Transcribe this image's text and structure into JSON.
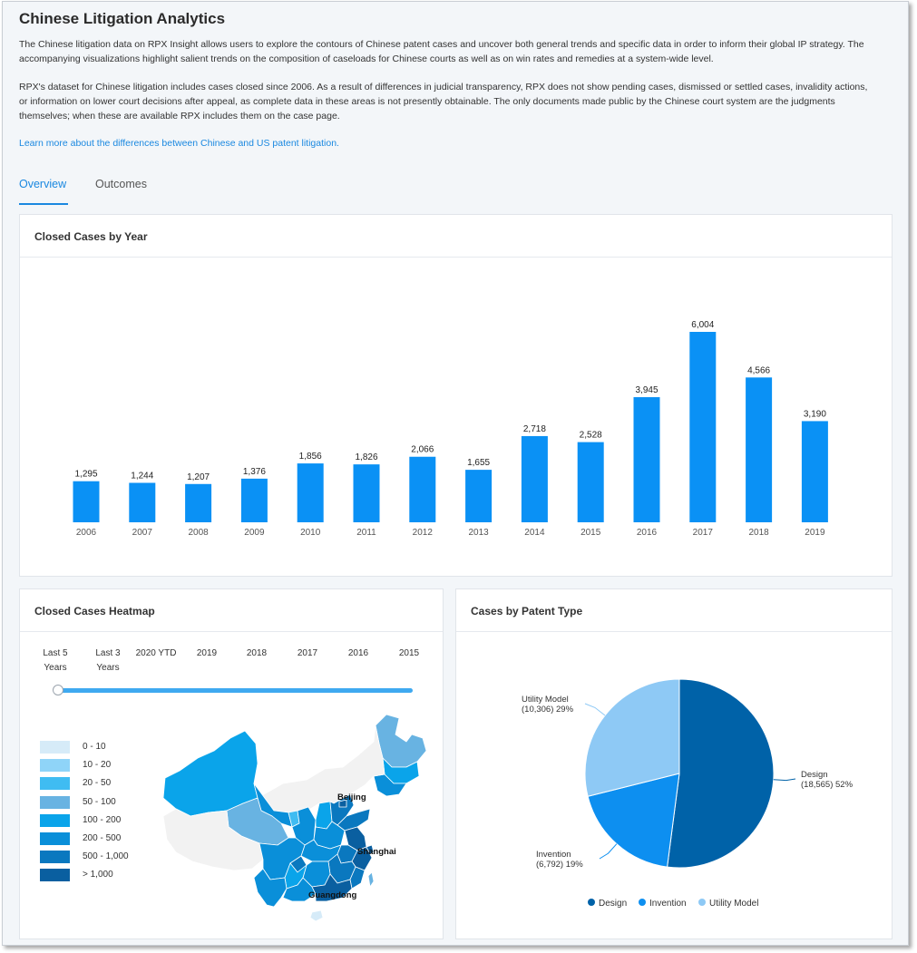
{
  "page": {
    "title": "Chinese Litigation Analytics",
    "para1": "The Chinese litigation data on RPX Insight allows users to explore the contours of Chinese patent cases and uncover both general trends and specific data in order to inform their global IP strategy. The accompanying visualizations highlight salient trends on the composition of caseloads for Chinese courts as well as on win rates and remedies at a system-wide level.",
    "para2": "RPX's dataset for Chinese litigation includes cases closed since 2006. As a result of differences in judicial transparency, RPX does not show pending cases, dismissed or settled cases, invalidity actions, or information on lower court decisions after appeal, as complete data in these areas is not presently obtainable.  The only documents made public by the Chinese court system are the judgments themselves; when these are available RPX includes them on the case page.",
    "link": "Learn more about the differences between Chinese and US patent litigation.",
    "tabs": [
      "Overview",
      "Outcomes"
    ],
    "active_tab": "Overview"
  },
  "colors": {
    "accent": "#1a88e0",
    "bar": "#0a91f5",
    "design": "#0062a8",
    "invention": "#0d8ff0",
    "utility": "#8ec9f5"
  },
  "bar_card": {
    "title": "Closed Cases by Year"
  },
  "heatmap": {
    "title": "Closed Cases Heatmap",
    "slider_labels": [
      "Last 5 Years",
      "Last 3 Years",
      "2020 YTD",
      "2019",
      "2018",
      "2017",
      "2016",
      "2015"
    ],
    "selected": "Last 5 Years",
    "legend": [
      {
        "label": "0 - 10",
        "color": "#d6ebf8"
      },
      {
        "label": "10 - 20",
        "color": "#8fd4f8"
      },
      {
        "label": "20 - 50",
        "color": "#3fbcf2"
      },
      {
        "label": "50 - 100",
        "color": "#68b3e2"
      },
      {
        "label": "100 - 200",
        "color": "#0aa4ea"
      },
      {
        "label": "200 - 500",
        "color": "#0a8fd9"
      },
      {
        "label": "500 - 1,000",
        "color": "#0a78bf"
      },
      {
        "label": "> 1,000",
        "color": "#0a5fa0"
      }
    ],
    "cities": [
      "Beijing",
      "Shanghai",
      "Guangdong"
    ]
  },
  "pie_card": {
    "title": "Cases by Patent Type"
  },
  "chart_data": [
    {
      "type": "bar",
      "title": "Closed Cases by Year",
      "categories": [
        "2006",
        "2007",
        "2008",
        "2009",
        "2010",
        "2011",
        "2012",
        "2013",
        "2014",
        "2015",
        "2016",
        "2017",
        "2018",
        "2019"
      ],
      "values": [
        1295,
        1244,
        1207,
        1376,
        1856,
        1826,
        2066,
        1655,
        2718,
        2528,
        3945,
        6004,
        4566,
        3190
      ],
      "labels": [
        "1,295",
        "1,244",
        "1,207",
        "1,376",
        "1,856",
        "1,826",
        "2,066",
        "1,655",
        "2,718",
        "2,528",
        "3,945",
        "6,004",
        "4,566",
        "3,190"
      ],
      "ylim": [
        0,
        6500
      ],
      "grid": false
    },
    {
      "type": "pie",
      "title": "Cases by Patent Type",
      "slices": [
        {
          "name": "Design",
          "value": 18565,
          "percent": 52,
          "label_line1": "Design",
          "label_line2": "(18,565) 52%"
        },
        {
          "name": "Invention",
          "value": 6792,
          "percent": 19,
          "label_line1": "Invention",
          "label_line2": "(6,792) 19%"
        },
        {
          "name": "Utility Model",
          "value": 10306,
          "percent": 29,
          "label_line1": "Utility Model",
          "label_line2": "(10,306) 29%"
        }
      ],
      "legend": [
        "Design",
        "Invention",
        "Utility Model"
      ],
      "legend_position": "bottom"
    }
  ]
}
